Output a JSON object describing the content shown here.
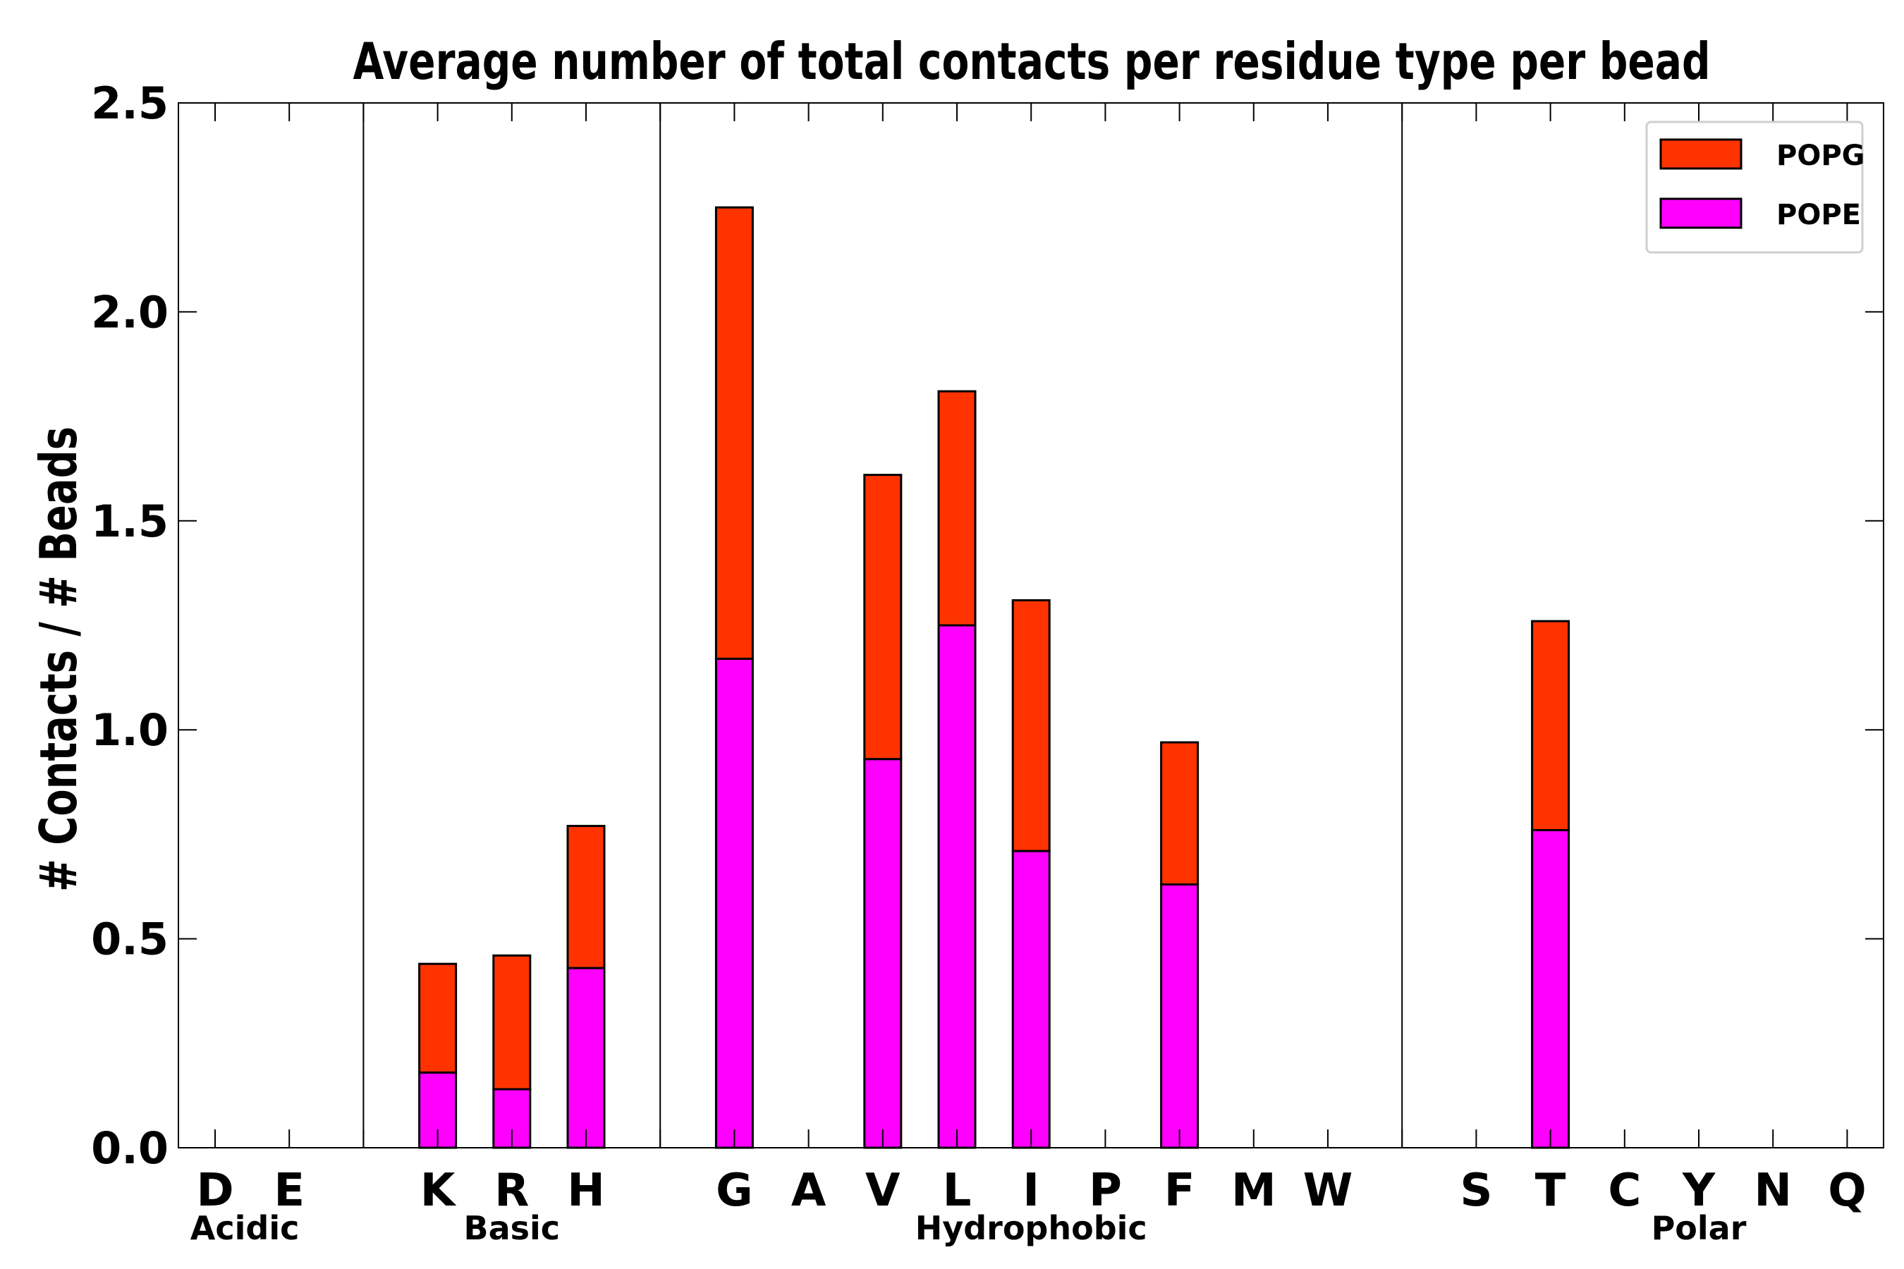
{
  "chart_data": {
    "type": "bar",
    "stacked": true,
    "title": "Average number of total contacts per residue type per bead",
    "xlabel": "",
    "ylabel": "# Contacts / # Beads",
    "ylim": [
      0,
      2.5
    ],
    "yticks": [
      "0.0",
      "0.5",
      "1.0",
      "1.5",
      "2.0",
      "2.5"
    ],
    "categories": [
      "D",
      "E",
      "",
      "K",
      "R",
      "H",
      "",
      "G",
      "A",
      "V",
      "L",
      "I",
      "P",
      "F",
      "M",
      "W",
      "",
      "S",
      "T",
      "C",
      "Y",
      "N",
      "Q"
    ],
    "series": [
      {
        "name": "POPE",
        "color": "#ff00ff",
        "values": [
          0,
          0,
          0,
          0.18,
          0.14,
          0.43,
          0,
          1.17,
          0,
          0.93,
          1.25,
          0.71,
          0,
          0.63,
          0,
          0,
          0,
          0,
          0.76,
          0,
          0,
          0,
          0
        ]
      },
      {
        "name": "POPG",
        "color": "#ff3300",
        "values": [
          0,
          0,
          0,
          0.26,
          0.32,
          0.34,
          0,
          1.08,
          0,
          0.68,
          0.56,
          0.6,
          0,
          0.34,
          0,
          0,
          0,
          0,
          0.5,
          0,
          0,
          0,
          0
        ]
      }
    ],
    "groups": [
      {
        "label": "Acidic",
        "separator_after": true
      },
      {
        "label": "Basic",
        "separator_after": true
      },
      {
        "label": "Hydrophobic",
        "separator_after": true
      },
      {
        "label": "Polar",
        "separator_after": false
      }
    ],
    "group_label_slots": [
      0.4,
      4,
      11,
      20
    ],
    "separator_slots": [
      2,
      6,
      16
    ],
    "legend": {
      "position": "top-right",
      "entries": [
        "POPG",
        "POPE"
      ]
    }
  }
}
